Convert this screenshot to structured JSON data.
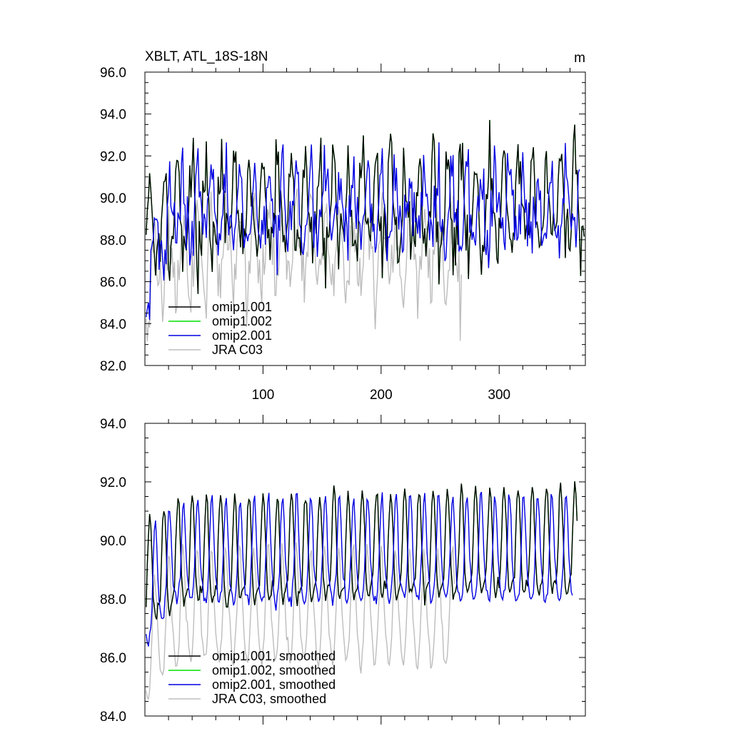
{
  "colors": {
    "omip1_001": "#000000",
    "omip1_002": "#00e000",
    "omip2_001": "#0000e0",
    "jra_c03": "#bdbdbd",
    "frame": "#000000"
  },
  "chart_data": [
    {
      "id": "raw",
      "type": "line",
      "title_left": "XBLT, ATL_18S-18N",
      "title_right": "m",
      "xlabel": "",
      "ylabel": "",
      "xlim": [
        0,
        373
      ],
      "ylim": [
        82.0,
        96.0
      ],
      "yticks": [
        82.0,
        84.0,
        86.0,
        88.0,
        90.0,
        92.0,
        94.0,
        96.0
      ],
      "ytick_labels": [
        "82.0",
        "84.0",
        "86.0",
        "88.0",
        "90.0",
        "92.0",
        "94.0",
        "96.0"
      ],
      "xticks": [
        100,
        200,
        300
      ],
      "xtick_labels": [
        "100",
        "200",
        "300"
      ],
      "legend_position": "bottom-left",
      "series": [
        {
          "key": "omip1_001",
          "name": "omip1.001",
          "length": 372,
          "period": 12,
          "base": [
            88.8,
            90.2,
            91.3,
            91.8,
            91.4,
            90.2,
            88.9,
            88.0,
            87.6,
            87.8,
            88.0,
            88.3
          ],
          "trend": [
            [
              0,
              -0.6
            ],
            [
              30,
              0.0
            ],
            [
              372,
              0.2
            ]
          ],
          "noise": 1.6,
          "seed": 17
        },
        {
          "key": "omip1_002",
          "name": "omip1.002",
          "length": 372,
          "period": 12,
          "base": [
            88.8,
            90.2,
            91.3,
            91.8,
            91.4,
            90.2,
            88.9,
            88.0,
            87.6,
            87.8,
            88.0,
            88.3
          ],
          "trend": [
            [
              0,
              -0.6
            ],
            [
              30,
              0.0
            ],
            [
              372,
              0.2
            ]
          ],
          "noise": 1.6,
          "seed": 17
        },
        {
          "key": "omip2_001",
          "name": "omip2.001",
          "length": 368,
          "period": 12,
          "base": [
            88.6,
            88.2,
            88.0,
            88.2,
            88.6,
            89.4,
            90.4,
            91.2,
            91.3,
            90.4,
            89.2,
            88.8
          ],
          "trend": [
            [
              0,
              -3.0
            ],
            [
              12,
              -1.0
            ],
            [
              24,
              0.0
            ],
            [
              368,
              0.2
            ]
          ],
          "noise": 1.6,
          "seed": 43
        },
        {
          "key": "jra_c03",
          "name": "JRA C03",
          "length": 268,
          "period": 12,
          "base": [
            86.8,
            86.0,
            85.8,
            86.2,
            87.0,
            88.0,
            89.0,
            89.6,
            89.4,
            88.6,
            87.8,
            87.3
          ],
          "trend": [
            [
              0,
              -1.6
            ],
            [
              24,
              -0.4
            ],
            [
              60,
              0.0
            ],
            [
              268,
              -0.3
            ]
          ],
          "noise": 1.7,
          "seed": 91
        }
      ]
    },
    {
      "id": "smoothed",
      "type": "line",
      "xlabel": "",
      "ylabel": "",
      "xlim": [
        0,
        373
      ],
      "ylim": [
        84.0,
        94.0
      ],
      "yticks": [
        84.0,
        86.0,
        88.0,
        90.0,
        92.0,
        94.0
      ],
      "ytick_labels": [
        "84.0",
        "86.0",
        "88.0",
        "90.0",
        "92.0",
        "94.0"
      ],
      "xticks": [
        100,
        200,
        300
      ],
      "xtick_labels": [],
      "legend_position": "bottom-left",
      "series": [
        {
          "key": "omip1_001",
          "name": "omip1.001, smoothed",
          "length": 366,
          "period": 12,
          "base": [
            88.6,
            89.8,
            91.0,
            91.6,
            91.3,
            90.2,
            88.9,
            88.2,
            87.9,
            88.1,
            88.3,
            88.4
          ],
          "trend": [
            [
              0,
              -0.8
            ],
            [
              30,
              -0.1
            ],
            [
              372,
              0.3
            ]
          ],
          "noise": 0.25,
          "seed": 23
        },
        {
          "key": "omip1_002",
          "name": "omip1.002, smoothed",
          "length": 366,
          "period": 12,
          "base": [
            88.6,
            89.8,
            91.0,
            91.6,
            91.3,
            90.2,
            88.9,
            88.2,
            87.9,
            88.1,
            88.3,
            88.4
          ],
          "trend": [
            [
              0,
              -0.8
            ],
            [
              30,
              -0.1
            ],
            [
              372,
              0.3
            ]
          ],
          "noise": 0.25,
          "seed": 23
        },
        {
          "key": "omip2_001",
          "name": "omip2.001, smoothed",
          "length": 362,
          "period": 12,
          "base": [
            88.3,
            88.0,
            87.9,
            88.0,
            88.3,
            89.0,
            90.2,
            91.3,
            91.4,
            90.6,
            89.4,
            88.7
          ],
          "trend": [
            [
              0,
              -1.6
            ],
            [
              12,
              -0.6
            ],
            [
              24,
              0.0
            ],
            [
              372,
              0.1
            ]
          ],
          "noise": 0.25,
          "seed": 51
        },
        {
          "key": "jra_c03",
          "name": "JRA C03, smoothed",
          "length": 262,
          "period": 12,
          "base": [
            86.4,
            86.0,
            85.9,
            86.2,
            86.9,
            87.9,
            89.0,
            89.8,
            89.6,
            88.6,
            87.6,
            87.0
          ],
          "trend": [
            [
              0,
              -1.4
            ],
            [
              18,
              -0.4
            ],
            [
              40,
              0.0
            ],
            [
              262,
              -0.2
            ]
          ],
          "noise": 0.3,
          "seed": 77
        }
      ]
    }
  ]
}
